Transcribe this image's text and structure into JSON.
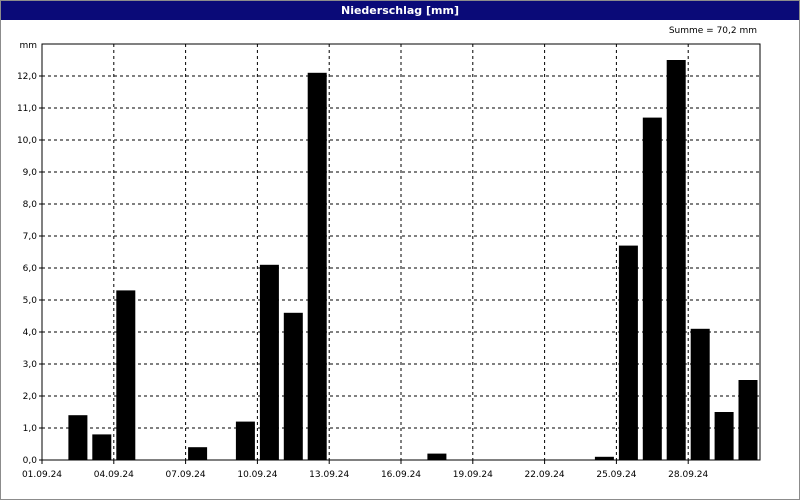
{
  "window": {
    "title": "Niederschlag [mm]"
  },
  "summary": {
    "text": "Summe = 70,2 mm"
  },
  "colors": {
    "titlebar": "#0a0a78",
    "bar": "#000000",
    "grid": "#000000"
  },
  "chart_data": {
    "type": "bar",
    "title": "Niederschlag [mm]",
    "ylabel": "mm",
    "xlabel": "",
    "ylim": [
      0,
      13
    ],
    "grid": true,
    "y_ticks": [
      "0,0",
      "1,0",
      "2,0",
      "3,0",
      "4,0",
      "5,0",
      "6,0",
      "7,0",
      "8,0",
      "9,0",
      "10,0",
      "11,0",
      "12,0"
    ],
    "x_tick_labels": [
      "01.09.24",
      "04.09.24",
      "07.09.24",
      "10.09.24",
      "13.09.24",
      "16.09.24",
      "19.09.24",
      "22.09.24",
      "25.09.24",
      "28.09.24"
    ],
    "categories": [
      "01.09.24",
      "02.09.24",
      "03.09.24",
      "04.09.24",
      "05.09.24",
      "06.09.24",
      "07.09.24",
      "08.09.24",
      "09.09.24",
      "10.09.24",
      "11.09.24",
      "12.09.24",
      "13.09.24",
      "14.09.24",
      "15.09.24",
      "16.09.24",
      "17.09.24",
      "18.09.24",
      "19.09.24",
      "20.09.24",
      "21.09.24",
      "22.09.24",
      "23.09.24",
      "24.09.24",
      "25.09.24",
      "26.09.24",
      "27.09.24",
      "28.09.24",
      "29.09.24",
      "30.09.24"
    ],
    "values": [
      0,
      1.4,
      0.8,
      5.3,
      0,
      0,
      0.4,
      0,
      1.2,
      6.1,
      4.6,
      12.1,
      0,
      0,
      0,
      0,
      0.2,
      0,
      0,
      0,
      0,
      0,
      0,
      0.1,
      6.7,
      10.7,
      12.5,
      4.1,
      1.5,
      2.5
    ],
    "summary": "Summe = 70,2 mm"
  }
}
